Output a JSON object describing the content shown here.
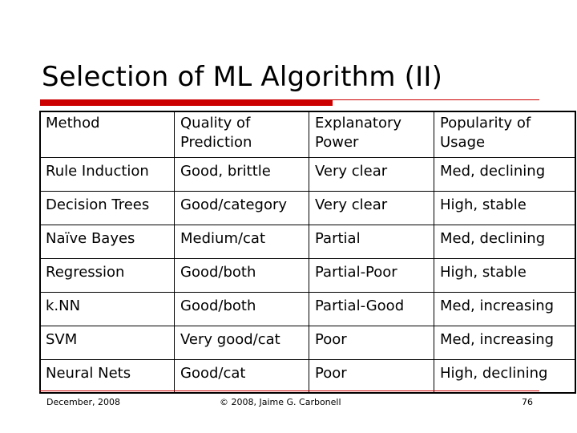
{
  "slide": {
    "title": "Selection of ML Algorithm (II)"
  },
  "table": {
    "headers": [
      [
        "Method"
      ],
      [
        "Quality of",
        "Prediction"
      ],
      [
        "Explanatory",
        "Power"
      ],
      [
        "Popularity of",
        "Usage"
      ]
    ],
    "rows": [
      [
        "Rule Induction",
        "Good, brittle",
        "Very clear",
        "Med, declining"
      ],
      [
        "Decision Trees",
        "Good/category",
        "Very clear",
        "High, stable"
      ],
      [
        "Naïve Bayes",
        "Medium/cat",
        "Partial",
        "Med, declining"
      ],
      [
        "Regression",
        "Good/both",
        "Partial-Poor",
        "High, stable"
      ],
      [
        "k.NN",
        "Good/both",
        "Partial-Good",
        "Med, increasing"
      ],
      [
        "SVM",
        "Very good/cat",
        "Poor",
        "Med, increasing"
      ],
      [
        "Neural Nets",
        "Good/cat",
        "Poor",
        "High, declining"
      ]
    ]
  },
  "footer": {
    "date": "December, 2008",
    "copyright": "© 2008, Jaime G. Carbonell",
    "page": "76"
  },
  "colors": {
    "accent": "#cc0000",
    "text": "#000000",
    "background": "#ffffff"
  }
}
